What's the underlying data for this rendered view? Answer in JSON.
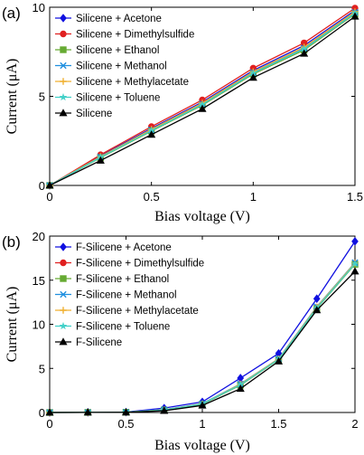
{
  "chart_data": [
    {
      "type": "line",
      "panel_label": "(a)",
      "xlabel": "Bias voltage (V)",
      "ylabel": "Current (μA)",
      "xlim": [
        0,
        1.5
      ],
      "ylim": [
        0,
        10
      ],
      "xticks": [
        0,
        0.5,
        1,
        1.5
      ],
      "xtick_labels": [
        "0",
        "0.5",
        "1",
        "1.5"
      ],
      "yticks": [
        0,
        5,
        10
      ],
      "ytick_labels": [
        "0",
        "5",
        "10"
      ],
      "legend_position": "top-left",
      "x": [
        0,
        0.25,
        0.5,
        0.75,
        1.0,
        1.25,
        1.5
      ],
      "series": [
        {
          "name": "Silicene + Acetone",
          "color": "#1010e0",
          "marker": "diamond",
          "values": [
            0,
            1.66,
            3.2,
            4.68,
            6.45,
            7.85,
            9.82
          ]
        },
        {
          "name": "Silicene + Dimethylsulfide",
          "color": "#e02020",
          "marker": "circle",
          "values": [
            0,
            1.72,
            3.3,
            4.8,
            6.58,
            8.0,
            9.95
          ]
        },
        {
          "name": "Silicene + Ethanol",
          "color": "#66aa33",
          "marker": "square",
          "values": [
            0,
            1.56,
            3.05,
            4.5,
            6.25,
            7.6,
            9.62
          ]
        },
        {
          "name": "Silicene + Methanol",
          "color": "#1f8fdf",
          "marker": "x",
          "values": [
            0,
            1.6,
            3.12,
            4.58,
            6.35,
            7.72,
            9.72
          ]
        },
        {
          "name": "Silicene + Methylacetate",
          "color": "#f0b030",
          "marker": "plus",
          "values": [
            0,
            1.62,
            3.15,
            4.62,
            6.38,
            7.76,
            9.75
          ]
        },
        {
          "name": "Silicene + Toluene",
          "color": "#40d0c8",
          "marker": "star",
          "values": [
            0,
            1.58,
            3.08,
            4.54,
            6.3,
            7.66,
            9.66
          ]
        },
        {
          "name": "Silicene",
          "color": "#000000",
          "marker": "triangle",
          "values": [
            0,
            1.4,
            2.85,
            4.3,
            6.05,
            7.4,
            9.48
          ]
        }
      ]
    },
    {
      "type": "line",
      "panel_label": "(b)",
      "xlabel": "Bias voltage (V)",
      "ylabel": "Current (μA)",
      "xlim": [
        0,
        2
      ],
      "ylim": [
        0,
        20
      ],
      "xticks": [
        0,
        0.5,
        1,
        1.5,
        2
      ],
      "xtick_labels": [
        "0",
        "0.5",
        "1",
        "1.5",
        "2"
      ],
      "yticks": [
        0,
        5,
        10,
        15,
        20
      ],
      "ytick_labels": [
        "0",
        "5",
        "10",
        "15",
        "20"
      ],
      "legend_position": "top-left",
      "x": [
        0,
        0.25,
        0.5,
        0.75,
        1.0,
        1.25,
        1.5,
        1.75,
        2.0
      ],
      "series": [
        {
          "name": "F-Silicene + Acetone",
          "color": "#1010e0",
          "marker": "diamond",
          "values": [
            0,
            0.02,
            0.05,
            0.5,
            1.2,
            3.9,
            6.7,
            12.9,
            19.4
          ]
        },
        {
          "name": "F-Silicene + Dimethylsulfide",
          "color": "#e02020",
          "marker": "circle",
          "values": [
            0,
            0.01,
            0.03,
            0.3,
            0.95,
            3.2,
            6.05,
            11.9,
            16.9
          ]
        },
        {
          "name": "F-Silicene + Ethanol",
          "color": "#66aa33",
          "marker": "square",
          "values": [
            0,
            0.01,
            0.03,
            0.28,
            0.92,
            3.1,
            6.0,
            11.8,
            16.8
          ]
        },
        {
          "name": "F-Silicene + Methanol",
          "color": "#1f8fdf",
          "marker": "x",
          "values": [
            0,
            0.01,
            0.03,
            0.32,
            1.0,
            3.25,
            6.1,
            12.0,
            17.0
          ]
        },
        {
          "name": "F-Silicene + Methylacetate",
          "color": "#f0b030",
          "marker": "plus",
          "values": [
            0,
            0.01,
            0.03,
            0.3,
            0.98,
            3.22,
            6.08,
            11.95,
            16.95
          ]
        },
        {
          "name": "F-Silicene + Toluene",
          "color": "#40d0c8",
          "marker": "star",
          "values": [
            0,
            0.01,
            0.03,
            0.29,
            0.96,
            3.15,
            6.02,
            11.85,
            16.85
          ]
        },
        {
          "name": "F-Silicene",
          "color": "#000000",
          "marker": "triangle",
          "values": [
            0,
            0.01,
            0.02,
            0.2,
            0.8,
            2.7,
            5.8,
            11.6,
            16.0
          ]
        }
      ]
    }
  ]
}
